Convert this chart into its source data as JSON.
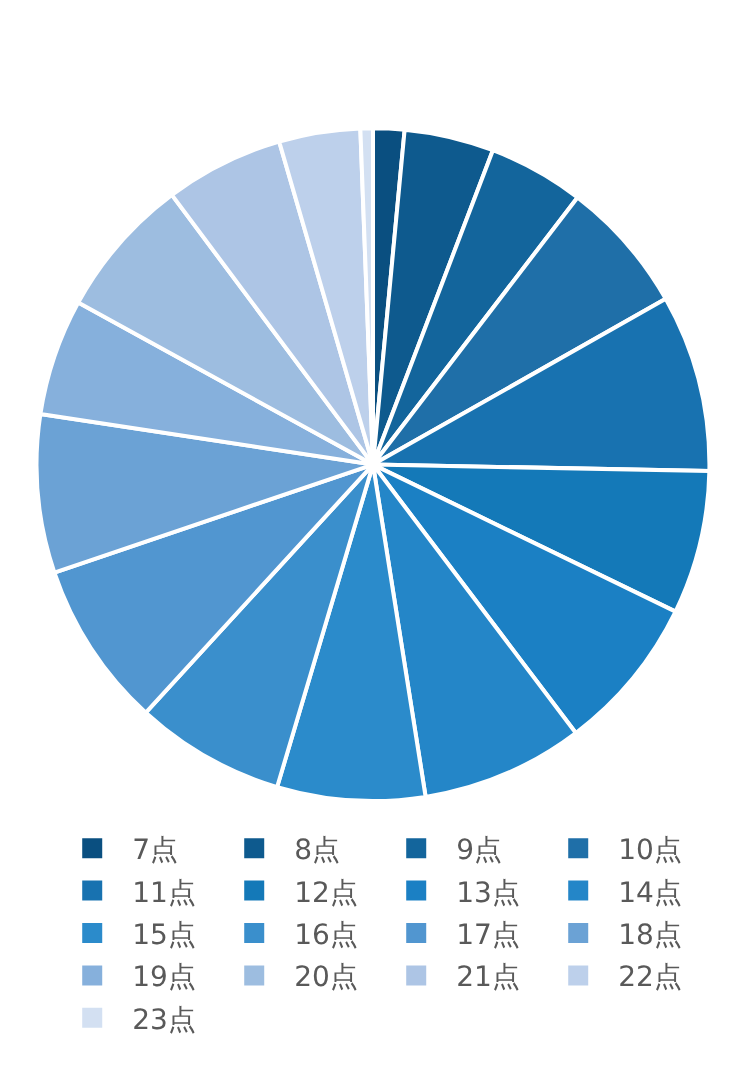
{
  "chart_data": {
    "type": "pie",
    "categories": [
      "7点",
      "8点",
      "9点",
      "10点",
      "11点",
      "12点",
      "13点",
      "14点",
      "15点",
      "16点",
      "17点",
      "18点",
      "19点",
      "20点",
      "21点",
      "22点",
      "23点"
    ],
    "values": [
      1.5,
      4.3,
      4.6,
      6.4,
      8.5,
      6.9,
      7.5,
      7.8,
      7.1,
      7.2,
      8.0,
      7.6,
      5.6,
      6.8,
      5.7,
      3.9,
      0.6
    ],
    "colors": [
      "#0a4f80",
      "#0e5a8e",
      "#13659c",
      "#1f6fa8",
      "#1872b0",
      "#1479b8",
      "#1b80c4",
      "#2486c8",
      "#2b8bcb",
      "#3a8fcc",
      "#5196d0",
      "#6ba2d5",
      "#86b0dc",
      "#9dbde0",
      "#adc5e5",
      "#bdd0eb",
      "#d3e0f2"
    ],
    "legend": "bottom"
  }
}
